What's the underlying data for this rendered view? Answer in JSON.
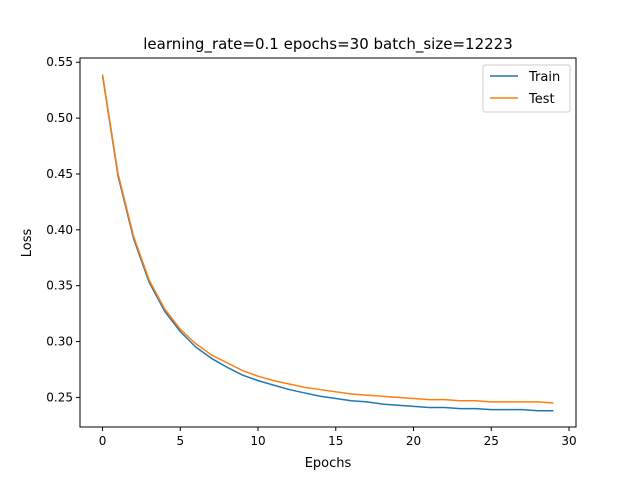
{
  "chart_data": {
    "type": "line",
    "title": "learning_rate=0.1 epochs=30 batch_size=12223",
    "xlabel": "Epochs",
    "ylabel": "Loss",
    "xlim": [
      -1.45,
      30.45
    ],
    "ylim": [
      0.2235,
      0.5538
    ],
    "xticks": [
      0,
      5,
      10,
      15,
      20,
      25,
      30
    ],
    "yticks": [
      0.25,
      0.3,
      0.35,
      0.4,
      0.45,
      0.5,
      0.55
    ],
    "xtick_labels": [
      "0",
      "5",
      "10",
      "15",
      "20",
      "25",
      "30"
    ],
    "ytick_labels": [
      "0.25",
      "0.30",
      "0.35",
      "0.40",
      "0.45",
      "0.50",
      "0.55"
    ],
    "grid": false,
    "legend_position": "top-right",
    "x": [
      0,
      1,
      2,
      3,
      4,
      5,
      6,
      7,
      8,
      9,
      10,
      11,
      12,
      13,
      14,
      15,
      16,
      17,
      18,
      19,
      20,
      21,
      22,
      23,
      24,
      25,
      26,
      27,
      28,
      29
    ],
    "series": [
      {
        "name": "Train",
        "color": "#1f77b4",
        "values": [
          0.538,
          0.448,
          0.392,
          0.353,
          0.327,
          0.309,
          0.295,
          0.285,
          0.277,
          0.27,
          0.265,
          0.261,
          0.257,
          0.254,
          0.251,
          0.249,
          0.247,
          0.246,
          0.244,
          0.243,
          0.242,
          0.241,
          0.241,
          0.24,
          0.24,
          0.239,
          0.239,
          0.239,
          0.238,
          0.238
        ]
      },
      {
        "name": "Test",
        "color": "#ff7f0e",
        "values": [
          0.539,
          0.45,
          0.394,
          0.355,
          0.329,
          0.311,
          0.298,
          0.288,
          0.281,
          0.274,
          0.269,
          0.265,
          0.262,
          0.259,
          0.257,
          0.255,
          0.253,
          0.252,
          0.251,
          0.25,
          0.249,
          0.248,
          0.248,
          0.247,
          0.247,
          0.246,
          0.246,
          0.246,
          0.246,
          0.245
        ]
      }
    ]
  }
}
